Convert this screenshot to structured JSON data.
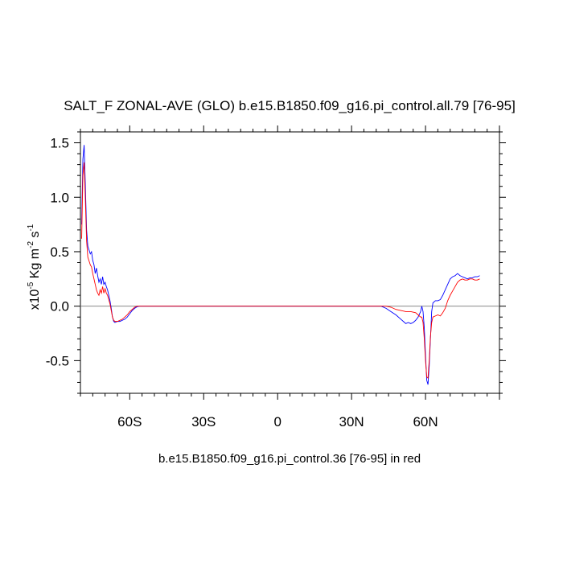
{
  "chart_data": {
    "type": "line",
    "title": "SALT_F ZONAL-AVE (GLO) b.e15.B1850.f09_g16.pi_control.all.79 [76-95]",
    "ylabel": {
      "prefix": "x10",
      "exp1": "-5",
      "mid": " Kg m",
      "exp2": "-2",
      "mid2": " s",
      "exp3": "-1"
    },
    "footnote": "b.e15.B1850.f09_g16.pi_control.36 [76-95] in red",
    "xlim": [
      -80,
      90
    ],
    "ylim": [
      -0.8,
      1.6
    ],
    "x_ticks": [
      {
        "value": -60,
        "label": "60S"
      },
      {
        "value": -30,
        "label": "30S"
      },
      {
        "value": 0,
        "label": "0"
      },
      {
        "value": 30,
        "label": "30N"
      },
      {
        "value": 60,
        "label": "60N"
      }
    ],
    "y_ticks": [
      {
        "value": 1.5,
        "label": "1.5"
      },
      {
        "value": 1.0,
        "label": "1.0"
      },
      {
        "value": 0.5,
        "label": "0.5"
      },
      {
        "value": 0.0,
        "label": "0.0"
      },
      {
        "value": -0.5,
        "label": "-0.5"
      }
    ],
    "zero_line": true,
    "colors": {
      "blue": "#0000ff",
      "red": "#ff0000",
      "zero": "#888888"
    },
    "series": [
      {
        "color": "#0000ff",
        "points": [
          [
            -79.5,
            0.75
          ],
          [
            -79,
            1.35
          ],
          [
            -78.5,
            1.48
          ],
          [
            -78,
            1.1
          ],
          [
            -77.5,
            0.7
          ],
          [
            -77,
            0.55
          ],
          [
            -76,
            0.48
          ],
          [
            -75.5,
            0.5
          ],
          [
            -75,
            0.42
          ],
          [
            -74.5,
            0.38
          ],
          [
            -74,
            0.3
          ],
          [
            -73.5,
            0.35
          ],
          [
            -73,
            0.28
          ],
          [
            -72.5,
            0.22
          ],
          [
            -72,
            0.25
          ],
          [
            -71.5,
            0.2
          ],
          [
            -71,
            0.27
          ],
          [
            -70.5,
            0.2
          ],
          [
            -70,
            0.22
          ],
          [
            -69.5,
            0.18
          ],
          [
            -69,
            0.15
          ],
          [
            -68.5,
            0.1
          ],
          [
            -68,
            0.05
          ],
          [
            -67.5,
            -0.02
          ],
          [
            -67,
            -0.1
          ],
          [
            -66.5,
            -0.14
          ],
          [
            -66,
            -0.15
          ],
          [
            -65,
            -0.14
          ],
          [
            -64,
            -0.14
          ],
          [
            -63,
            -0.13
          ],
          [
            -62,
            -0.12
          ],
          [
            -61,
            -0.1
          ],
          [
            -60,
            -0.07
          ],
          [
            -59,
            -0.04
          ],
          [
            -58,
            -0.02
          ],
          [
            -57,
            -0.005
          ],
          [
            -56,
            0.0
          ],
          [
            -40,
            0.0
          ],
          [
            -20,
            0.0
          ],
          [
            0,
            0.0
          ],
          [
            20,
            0.0
          ],
          [
            42,
            0.0
          ],
          [
            44,
            -0.02
          ],
          [
            46,
            -0.05
          ],
          [
            48,
            -0.08
          ],
          [
            50,
            -0.12
          ],
          [
            51,
            -0.14
          ],
          [
            52,
            -0.16
          ],
          [
            53,
            -0.15
          ],
          [
            54,
            -0.16
          ],
          [
            55,
            -0.15
          ],
          [
            56,
            -0.13
          ],
          [
            57,
            -0.1
          ],
          [
            58,
            -0.05
          ],
          [
            58.5,
            0.0
          ],
          [
            59,
            -0.05
          ],
          [
            59.5,
            -0.2
          ],
          [
            60,
            -0.45
          ],
          [
            60.5,
            -0.68
          ],
          [
            61,
            -0.72
          ],
          [
            61.5,
            -0.55
          ],
          [
            62,
            -0.3
          ],
          [
            62.5,
            -0.05
          ],
          [
            63,
            0.03
          ],
          [
            64,
            0.05
          ],
          [
            65,
            0.05
          ],
          [
            66,
            0.06
          ],
          [
            67,
            0.1
          ],
          [
            68,
            0.15
          ],
          [
            69,
            0.2
          ],
          [
            70,
            0.25
          ],
          [
            71,
            0.27
          ],
          [
            72,
            0.28
          ],
          [
            73,
            0.3
          ],
          [
            74,
            0.28
          ],
          [
            75,
            0.27
          ],
          [
            76,
            0.26
          ],
          [
            77,
            0.25
          ],
          [
            78,
            0.26
          ],
          [
            79,
            0.26
          ],
          [
            80,
            0.27
          ],
          [
            81,
            0.27
          ],
          [
            82,
            0.28
          ]
        ]
      },
      {
        "color": "#ff0000",
        "points": [
          [
            -79.5,
            0.62
          ],
          [
            -79,
            1.2
          ],
          [
            -78.5,
            1.32
          ],
          [
            -78,
            0.98
          ],
          [
            -77.5,
            0.6
          ],
          [
            -77,
            0.45
          ],
          [
            -76,
            0.38
          ],
          [
            -75.5,
            0.36
          ],
          [
            -75,
            0.3
          ],
          [
            -74.5,
            0.25
          ],
          [
            -74,
            0.2
          ],
          [
            -73.5,
            0.15
          ],
          [
            -73,
            0.12
          ],
          [
            -72.5,
            0.1
          ],
          [
            -72,
            0.15
          ],
          [
            -71.5,
            0.12
          ],
          [
            -71,
            0.18
          ],
          [
            -70.5,
            0.12
          ],
          [
            -70,
            0.16
          ],
          [
            -69.5,
            0.12
          ],
          [
            -69,
            0.1
          ],
          [
            -68.5,
            0.06
          ],
          [
            -68,
            0.02
          ],
          [
            -67.5,
            -0.04
          ],
          [
            -67,
            -0.1
          ],
          [
            -66.5,
            -0.13
          ],
          [
            -66,
            -0.14
          ],
          [
            -65,
            -0.14
          ],
          [
            -64,
            -0.13
          ],
          [
            -63,
            -0.12
          ],
          [
            -62,
            -0.1
          ],
          [
            -61,
            -0.08
          ],
          [
            -60,
            -0.05
          ],
          [
            -59,
            -0.03
          ],
          [
            -58,
            -0.01
          ],
          [
            -57,
            0.0
          ],
          [
            -40,
            0.0
          ],
          [
            -20,
            0.0
          ],
          [
            0,
            0.0
          ],
          [
            20,
            0.0
          ],
          [
            44,
            0.0
          ],
          [
            46,
            -0.01
          ],
          [
            48,
            -0.03
          ],
          [
            50,
            -0.04
          ],
          [
            52,
            -0.05
          ],
          [
            54,
            -0.05
          ],
          [
            56,
            -0.06
          ],
          [
            57,
            -0.08
          ],
          [
            58,
            -0.1
          ],
          [
            58.5,
            -0.1
          ],
          [
            59,
            -0.15
          ],
          [
            59.5,
            -0.3
          ],
          [
            60,
            -0.5
          ],
          [
            60.5,
            -0.65
          ],
          [
            61,
            -0.66
          ],
          [
            61.5,
            -0.5
          ],
          [
            62,
            -0.28
          ],
          [
            62.5,
            -0.15
          ],
          [
            63,
            -0.1
          ],
          [
            64,
            -0.09
          ],
          [
            65,
            -0.08
          ],
          [
            66,
            -0.09
          ],
          [
            67,
            -0.06
          ],
          [
            68,
            -0.02
          ],
          [
            69,
            0.05
          ],
          [
            70,
            0.1
          ],
          [
            71,
            0.14
          ],
          [
            72,
            0.18
          ],
          [
            73,
            0.22
          ],
          [
            74,
            0.24
          ],
          [
            75,
            0.25
          ],
          [
            76,
            0.24
          ],
          [
            77,
            0.24
          ],
          [
            78,
            0.25
          ],
          [
            79,
            0.25
          ],
          [
            80,
            0.24
          ],
          [
            81,
            0.24
          ],
          [
            82,
            0.25
          ]
        ]
      }
    ]
  }
}
